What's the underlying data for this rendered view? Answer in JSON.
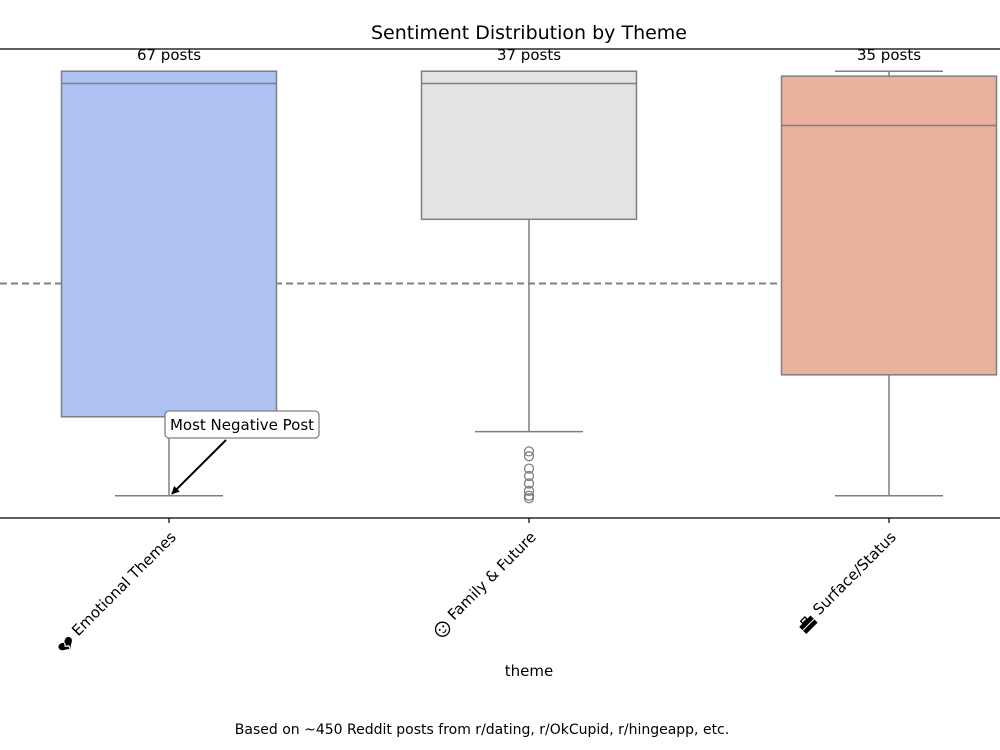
{
  "chart_data": {
    "type": "box",
    "title": "Sentiment Distribution by Theme",
    "xlabel": "theme",
    "ylabel": "",
    "ylim": [
      -0.95,
      0.95
    ],
    "reference_line": {
      "y": 0.0,
      "style": "dashed",
      "color": "#808080"
    },
    "categories": [
      {
        "name": "Emotional Themes",
        "icon": "broken-heart-icon",
        "count_label": "67 posts",
        "color": "#aec1f3",
        "whisker_low": -0.86,
        "q1": -0.54,
        "median": 0.81,
        "q3": 0.86,
        "whisker_high": 0.86,
        "outliers": []
      },
      {
        "name": "Family & Future",
        "icon": "baby-face-icon",
        "count_label": "37 posts",
        "color": "#e3e3e3",
        "whisker_low": -0.6,
        "q1": 0.26,
        "median": 0.81,
        "q3": 0.86,
        "whisker_high": 0.86,
        "outliers": [
          -0.68,
          -0.7,
          -0.75,
          -0.78,
          -0.81,
          -0.84,
          -0.86,
          -0.87
        ]
      },
      {
        "name": "Surface/Status",
        "icon": "briefcase-icon",
        "count_label": "35 posts",
        "color": "#eab19c",
        "whisker_low": -0.86,
        "q1": -0.37,
        "median": 0.64,
        "q3": 0.84,
        "whisker_high": 0.86,
        "outliers": []
      }
    ],
    "annotation": {
      "text": "Most Negative Post",
      "category_index": 0,
      "y": -0.86
    }
  },
  "footer": "Based on ~450 Reddit posts from r/dating, r/OkCupid, r/hingeapp, etc."
}
